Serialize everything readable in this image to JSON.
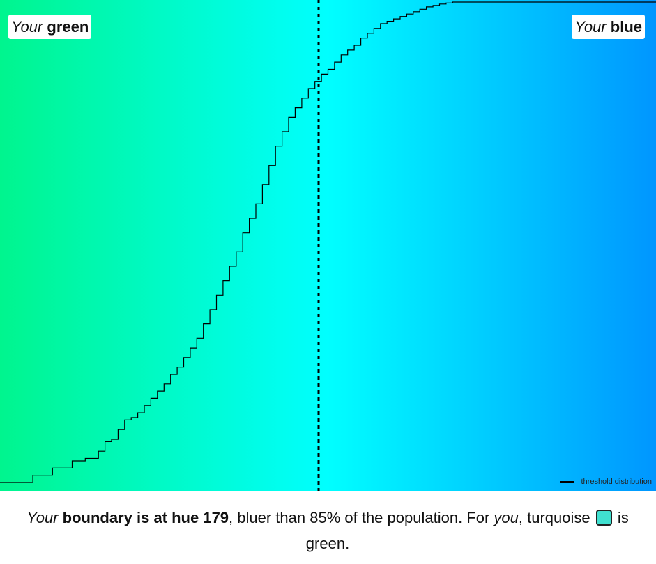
{
  "chart_data": {
    "type": "line",
    "step": true,
    "gradient": {
      "start_color": "#00f58e",
      "middle_color": "#00ffff",
      "end_color": "#0096ff"
    },
    "boundary": {
      "hue": 179,
      "color": "#000000"
    },
    "line_color": "#000000",
    "x": [
      0,
      5,
      8,
      11,
      13,
      15,
      16,
      17,
      18,
      19,
      20,
      21,
      22,
      23,
      24,
      25,
      26,
      27,
      28,
      29,
      30,
      31,
      32,
      33,
      34,
      35,
      36,
      37,
      38,
      39,
      40,
      41,
      42,
      43,
      44,
      45,
      46,
      47,
      48,
      49,
      50,
      51,
      52,
      53,
      54,
      55,
      56,
      57,
      58,
      59,
      60,
      61,
      62,
      63,
      64,
      65,
      66,
      67,
      68,
      69,
      70,
      71,
      72,
      73,
      74,
      75,
      76,
      77,
      78,
      79,
      80,
      81,
      82,
      83,
      84,
      85,
      86,
      87,
      88,
      89,
      90,
      91,
      92,
      93,
      94,
      95,
      96,
      97,
      98,
      99,
      100
    ],
    "values": [
      0,
      0.015,
      0.03,
      0.045,
      0.05,
      0.065,
      0.085,
      0.09,
      0.11,
      0.13,
      0.135,
      0.145,
      0.16,
      0.175,
      0.19,
      0.205,
      0.225,
      0.24,
      0.26,
      0.28,
      0.3,
      0.33,
      0.36,
      0.39,
      0.42,
      0.45,
      0.48,
      0.52,
      0.55,
      0.58,
      0.62,
      0.66,
      0.7,
      0.73,
      0.76,
      0.78,
      0.8,
      0.82,
      0.835,
      0.85,
      0.86,
      0.875,
      0.89,
      0.9,
      0.91,
      0.925,
      0.935,
      0.945,
      0.955,
      0.96,
      0.965,
      0.97,
      0.975,
      0.98,
      0.985,
      0.99,
      0.993,
      0.996,
      0.998,
      1,
      1,
      1,
      1,
      1,
      1,
      1,
      1,
      1,
      1,
      1,
      1,
      1,
      1,
      1,
      1,
      1,
      1,
      1,
      1,
      1,
      1,
      1,
      1,
      1,
      1,
      1,
      1,
      1,
      1,
      1,
      1
    ]
  },
  "labels": {
    "left_prefix": "Your",
    "left_word": "green",
    "right_prefix": "Your",
    "right_word": "blue",
    "legend": "threshold distribution"
  },
  "caption": {
    "your": "Your",
    "boundary": "boundary is at hue 179",
    "middle": ", bluer than 85% of the population. For ",
    "you": "you",
    "turquoise": ", turquoise",
    "swatch_color": "#40e0d0",
    "end": " is green."
  }
}
